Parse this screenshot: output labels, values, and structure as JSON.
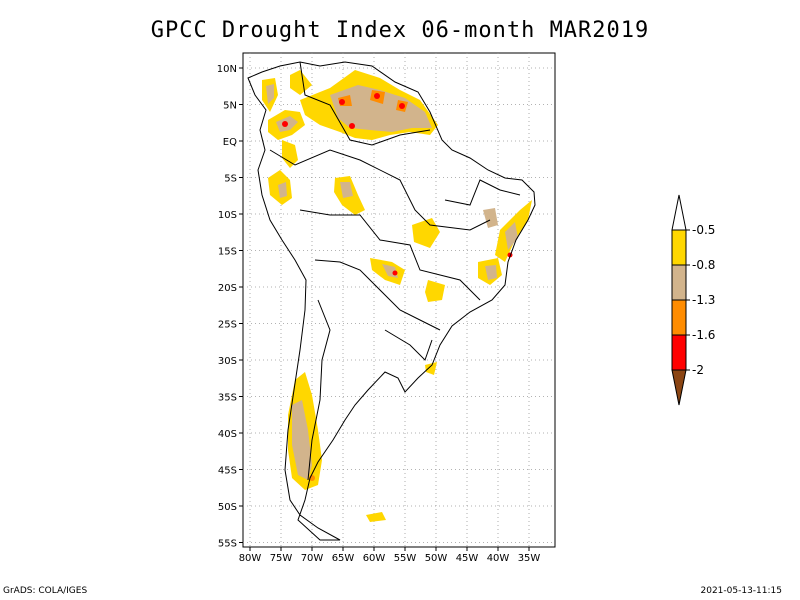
{
  "title": "GPCC Drought Index 06-month MAR2019",
  "lat_labels": [
    "10N",
    "5N",
    "EQ",
    "5S",
    "10S",
    "15S",
    "20S",
    "25S",
    "30S",
    "35S",
    "40S",
    "45S",
    "50S",
    "55S"
  ],
  "lon_labels": [
    "80W",
    "75W",
    "70W",
    "65W",
    "60W",
    "55W",
    "50W",
    "45W",
    "40W",
    "35W"
  ],
  "colorbar": {
    "labels": [
      "-0.5",
      "-0.8",
      "-1.3",
      "-1.6",
      "-2"
    ],
    "colors": [
      "#ffffff",
      "#ffd700",
      "#d2b48c",
      "#ff8c00",
      "#ff0000",
      "#8b4513"
    ]
  },
  "footer": {
    "left": "GrADS: COLA/IGES",
    "right": "2021-05-13-11:15"
  }
}
